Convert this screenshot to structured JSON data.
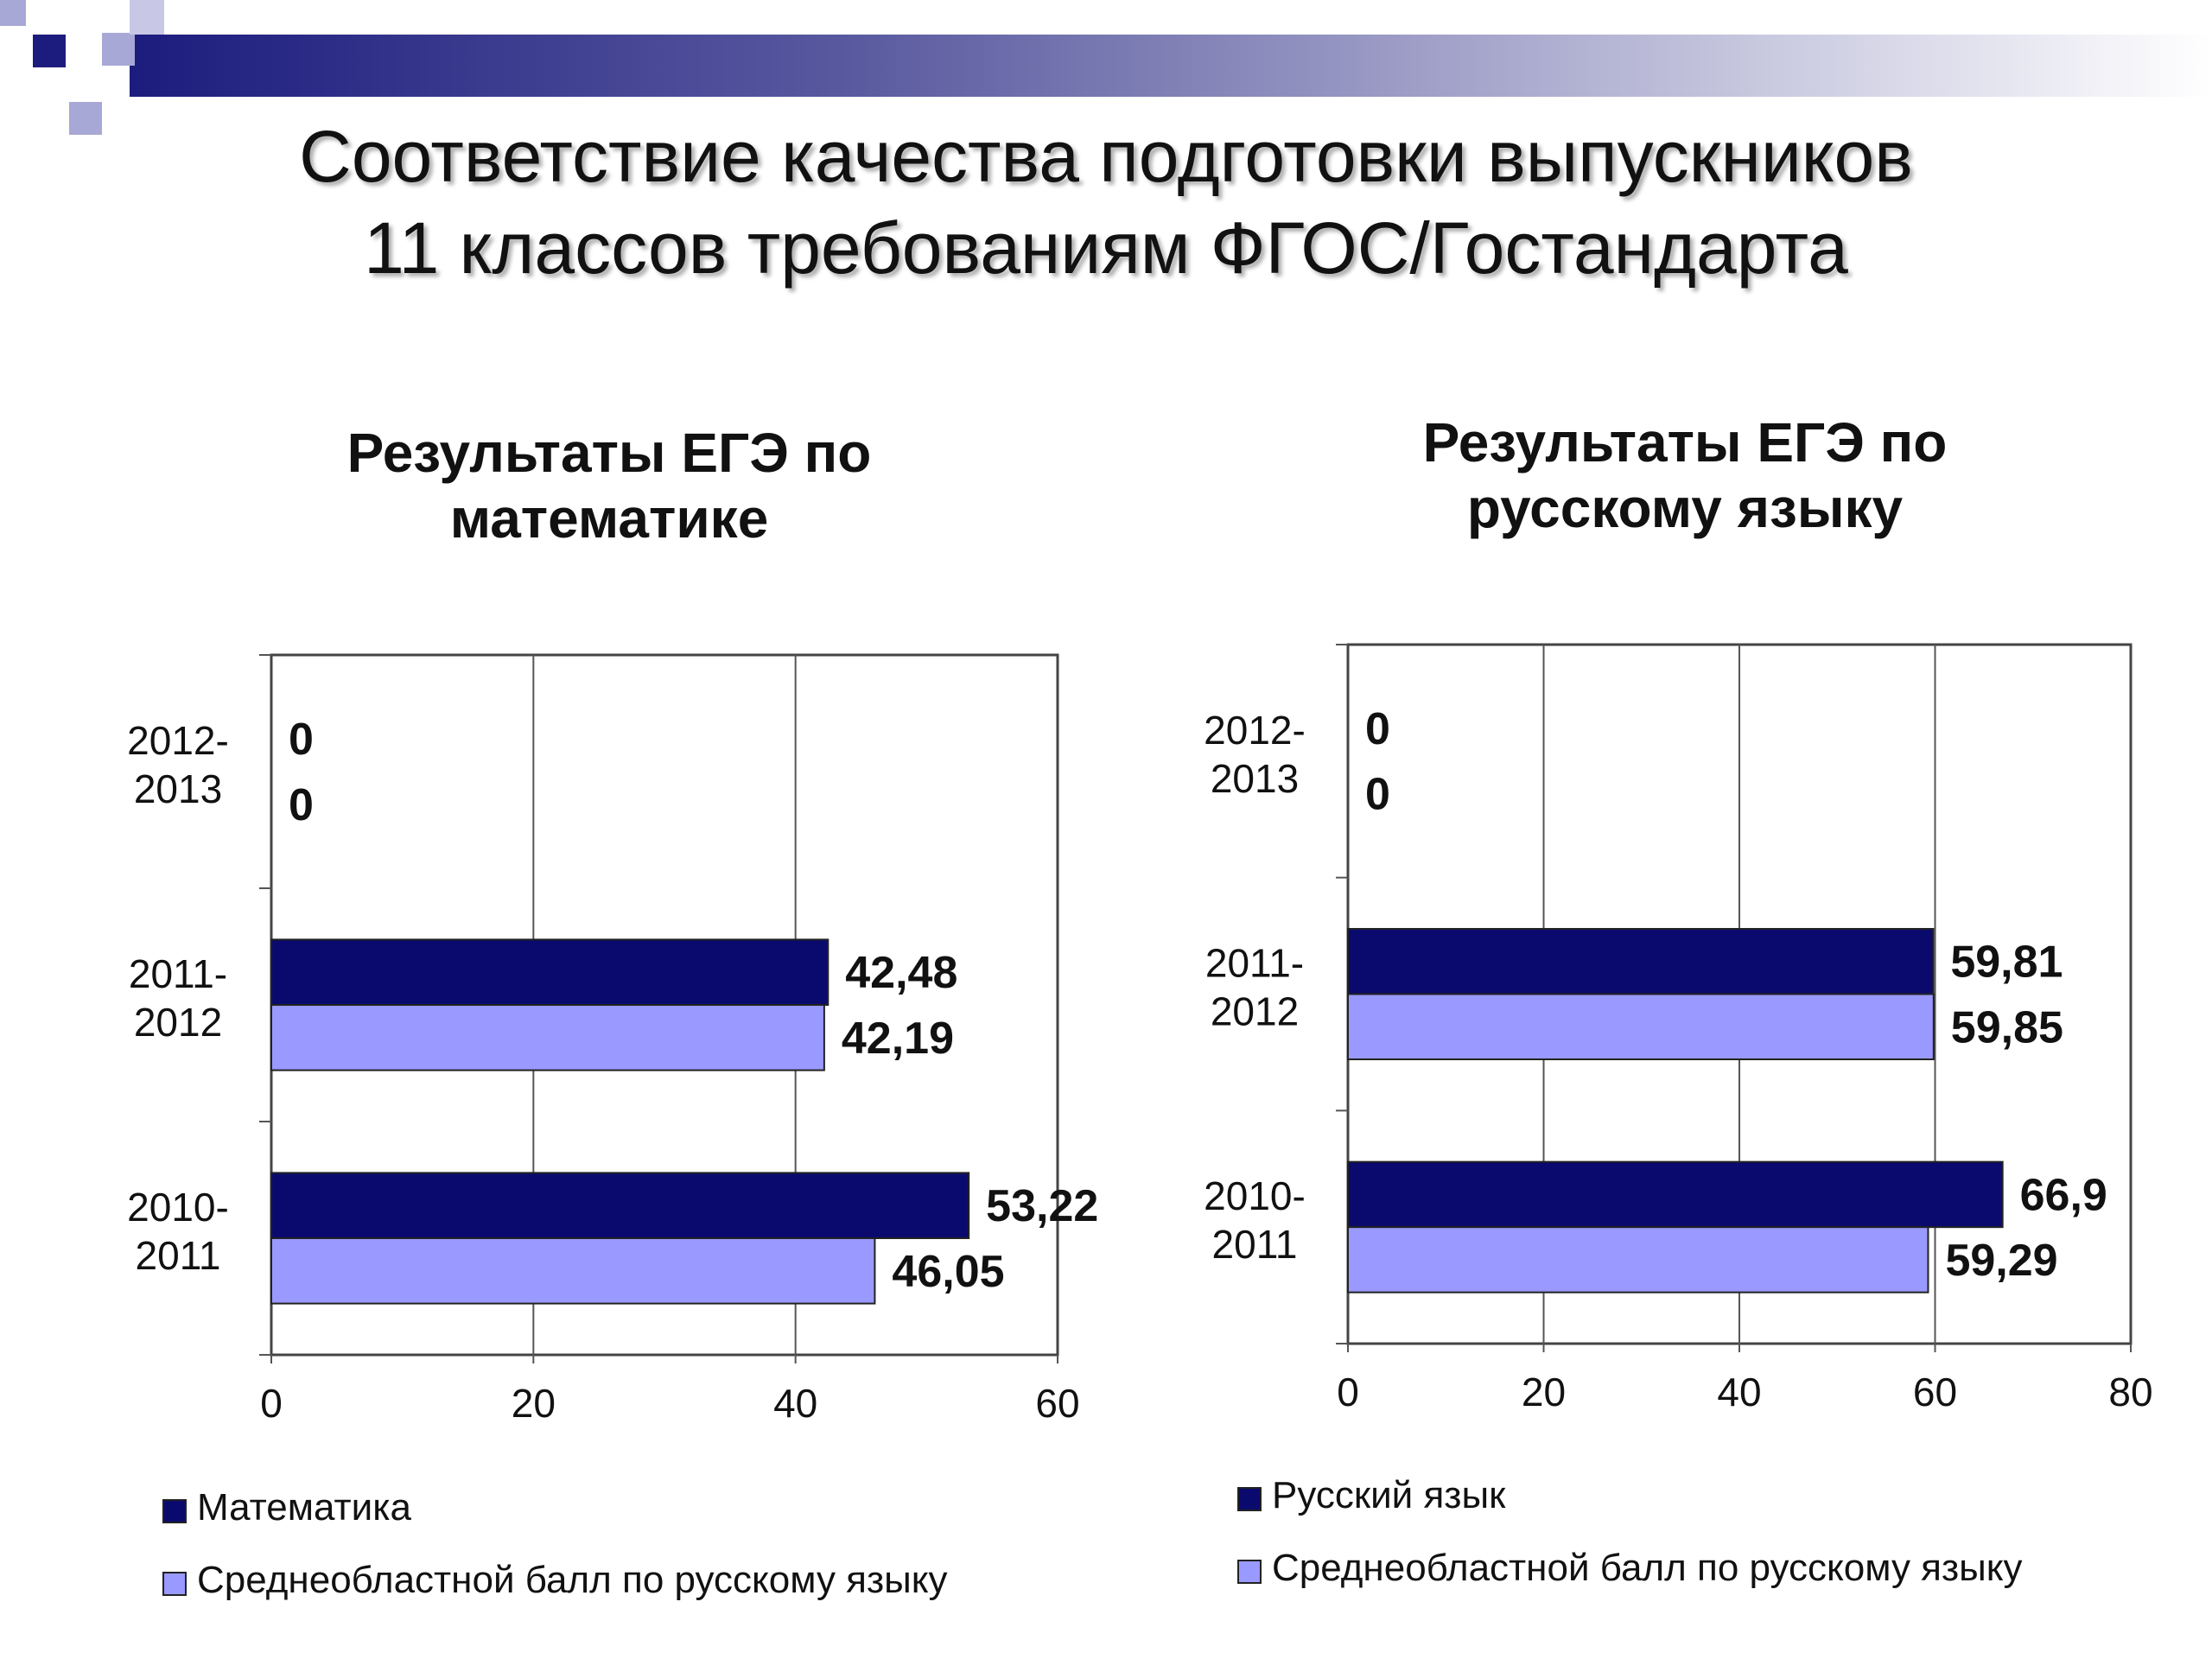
{
  "slide": {
    "title_line1": "Соответствие качества подготовки выпускников",
    "title_line2": "11 классов требованиям ФГОС/Гостандарта"
  },
  "colors": {
    "primary": "#0a0a6e",
    "secondary": "#9999ff",
    "decor_dark": "#1c1c7e",
    "decor_light": "#a8a8d6"
  },
  "chart_data": [
    {
      "type": "bar",
      "orientation": "horizontal",
      "title_line1": "Результаты ЕГЭ по",
      "title_line2": "математике",
      "categories": [
        "2012-2013",
        "2011-2012",
        "2010-2011"
      ],
      "category_lines": [
        [
          "2012-",
          "2013"
        ],
        [
          "2011-",
          "2012"
        ],
        [
          "2010-",
          "2011"
        ]
      ],
      "series": [
        {
          "name": "Математика",
          "values": [
            0,
            42.48,
            53.22
          ],
          "labels": [
            "0",
            "42,48",
            "53,22"
          ]
        },
        {
          "name": "Среднеобластной балл по русскому языку",
          "values": [
            0,
            42.19,
            46.05
          ],
          "labels": [
            "0",
            "42,19",
            "46,05"
          ]
        }
      ],
      "xlim": [
        0,
        60
      ],
      "xticks": [
        0,
        20,
        40,
        60
      ],
      "grid": true,
      "legend_position": "bottom"
    },
    {
      "type": "bar",
      "orientation": "horizontal",
      "title_line1": "Результаты ЕГЭ по",
      "title_line2": "русскому языку",
      "categories": [
        "2012-2013",
        "2011-2012",
        "2010-2011"
      ],
      "category_lines": [
        [
          "2012-",
          "2013"
        ],
        [
          "2011-",
          "2012"
        ],
        [
          "2010-",
          "2011"
        ]
      ],
      "series": [
        {
          "name": "Русский язык",
          "values": [
            0,
            59.81,
            66.9
          ],
          "labels": [
            "0",
            "59,81",
            "66,9"
          ]
        },
        {
          "name": "Среднеобластной балл по русскому языку",
          "values": [
            0,
            59.85,
            59.29
          ],
          "labels": [
            "0",
            "59,85",
            "59,29"
          ]
        }
      ],
      "xlim": [
        0,
        80
      ],
      "xticks": [
        0,
        20,
        40,
        60,
        80
      ],
      "grid": true,
      "legend_position": "bottom"
    }
  ]
}
